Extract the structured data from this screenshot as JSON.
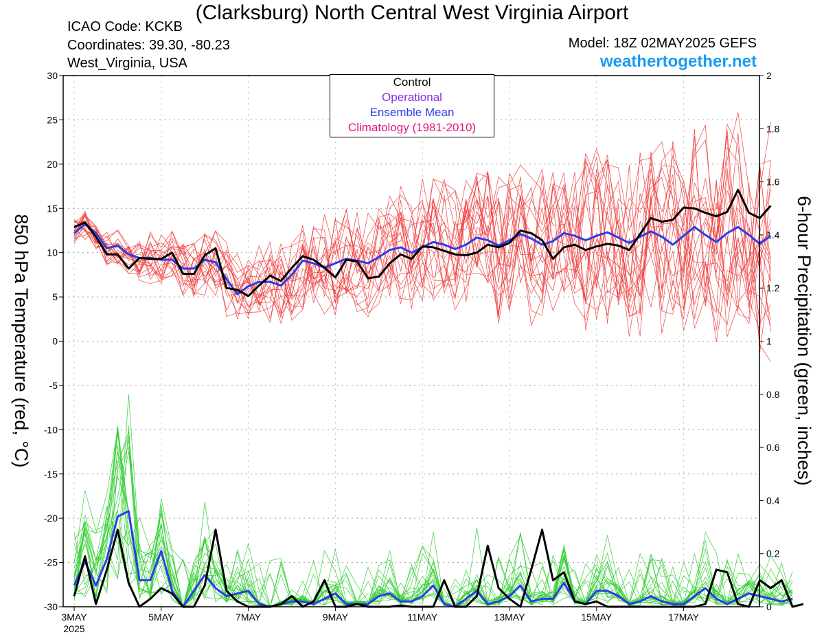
{
  "header": {
    "title": "(Clarksburg) North Central West Virginia Airport",
    "icao": "ICAO Code: KCKB",
    "coords": "Coordinates: 39.30, -80.23",
    "region": "West_Virginia, USA",
    "model": "Model: 18Z 02MAY2025 GEFS",
    "site": "weathertogether.net"
  },
  "legend": [
    {
      "label": "Control",
      "color": "#000000"
    },
    {
      "label": "Operational",
      "color": "#8a2be2"
    },
    {
      "label": "Ensemble Mean",
      "color": "#2b3de8"
    },
    {
      "label": "Climatology (1981-2010)",
      "color": "#e0157c"
    }
  ],
  "chart_data": {
    "type": "line",
    "ylabel": "850 hPa Temperature (red, °C)",
    "y2label": "6-hour Precipitation (green, inches)",
    "ylim": [
      -30,
      30
    ],
    "y2lim": [
      0,
      2
    ],
    "yticks": [
      "30",
      "25",
      "20",
      "15",
      "10",
      "5",
      "0",
      "-5",
      "-10",
      "-15",
      "-20",
      "-25",
      "-30"
    ],
    "y2ticks": [
      "2",
      "1.8",
      "1.6",
      "1.4",
      "1.2",
      "1",
      "0.8",
      "0.6",
      "0.4",
      "0.2",
      "0"
    ],
    "xticks": [
      "3MAY",
      "5MAY",
      "7MAY",
      "9MAY",
      "11MAY",
      "13MAY",
      "15MAY",
      "17MAY"
    ],
    "xsub": "2025",
    "grid": true,
    "legend_position": "top-center",
    "colors": {
      "control": "#000000",
      "mean": "#2b3de8",
      "members_temp": "#ee3b3b",
      "members_precip": "#2ecc2e",
      "climatology": "#e0157c"
    },
    "x_step": "6 hours",
    "series": [
      {
        "name": "Control",
        "axis": "temperature",
        "values": [
          12.9,
          13.4,
          11.8,
          9.8,
          9.8,
          8.2,
          9.4,
          9.3,
          9.3,
          10.0,
          7.6,
          7.6,
          9.7,
          10.5,
          6.0,
          5.8,
          5.1,
          6.3,
          7.4,
          6.8,
          8.3,
          9.6,
          9.2,
          8.3,
          7.2,
          9.2,
          9.0,
          7.1,
          7.3,
          8.8,
          9.8,
          9.3,
          10.7,
          10.6,
          10.2,
          9.8,
          9.7,
          10.0,
          10.9,
          10.6,
          11.1,
          12.5,
          12.2,
          11.4,
          9.3,
          10.6,
          10.9,
          10.3,
          10.7,
          11.0,
          10.8,
          10.3,
          12.1,
          13.9,
          13.5,
          13.7,
          15.1,
          15.0,
          14.5,
          14.1,
          14.6,
          17.1,
          14.5,
          13.9,
          15.3
        ]
      },
      {
        "name": "Ensemble Mean",
        "axis": "temperature",
        "values": [
          12.2,
          13.2,
          12.2,
          10.5,
          10.8,
          9.8,
          9.4,
          9.4,
          9.2,
          9.2,
          8.2,
          8.2,
          9.2,
          8.9,
          7.0,
          5.3,
          6.2,
          6.7,
          6.7,
          6.3,
          7.5,
          9.1,
          8.8,
          8.3,
          8.8,
          9.3,
          9.1,
          8.8,
          9.5,
          10.3,
          10.6,
          10.0,
          10.6,
          11.2,
          10.9,
          10.4,
          10.9,
          11.7,
          11.4,
          10.8,
          11.4,
          12.1,
          11.6,
          10.9,
          11.3,
          12.2,
          11.9,
          11.4,
          11.9,
          12.3,
          11.7,
          11.1,
          11.8,
          12.4,
          11.8,
          10.9,
          11.9,
          12.9,
          12.0,
          11.2,
          12.2,
          12.9,
          12.0,
          11.0,
          11.9
        ]
      },
      {
        "name": "Control",
        "axis": "precipitation",
        "values": [
          0.04,
          0.19,
          0.01,
          0.14,
          0.29,
          0.09,
          0,
          0.03,
          0.07,
          0.05,
          0,
          0,
          0.08,
          0.29,
          0.06,
          0.02,
          0,
          0,
          0,
          0.01,
          0.04,
          0,
          0.02,
          0.1,
          0,
          0,
          0.01,
          0,
          0,
          0,
          0.005,
          0,
          0,
          0,
          0.1,
          0,
          0,
          0.04,
          0.23,
          0.07,
          0.03,
          0,
          0.14,
          0.29,
          0.1,
          0.13,
          0.02,
          0.01,
          0.02,
          0,
          0,
          0,
          0,
          0,
          0,
          0,
          0,
          0,
          0.01,
          0.14,
          0.13,
          0.01,
          0,
          0.1,
          0.07,
          0.1,
          0,
          0.01
        ]
      },
      {
        "name": "Ensemble Mean",
        "axis": "precipitation",
        "values": [
          0.08,
          0.17,
          0.08,
          0.18,
          0.34,
          0.36,
          0.1,
          0.1,
          0.21,
          0.06,
          0,
          0.06,
          0.12,
          0.07,
          0.04,
          0.05,
          0.06,
          0.01,
          0,
          0.01,
          0.02,
          0.02,
          0.01,
          0.03,
          0.05,
          0.01,
          0.01,
          0.01,
          0.04,
          0.05,
          0.02,
          0.02,
          0.04,
          0.08,
          0.01,
          0,
          0.03,
          0.06,
          0.01,
          0.02,
          0.04,
          0.08,
          0.02,
          0.03,
          0.03,
          0.09,
          0.02,
          0.01,
          0.06,
          0.06,
          0.04,
          0.01,
          0.02,
          0.04,
          0.02,
          0.01,
          0.01,
          0.04,
          0.07,
          0.03,
          0.01,
          0.03,
          0.05,
          0.04,
          0.03,
          0.02,
          0.03
        ]
      }
    ]
  }
}
